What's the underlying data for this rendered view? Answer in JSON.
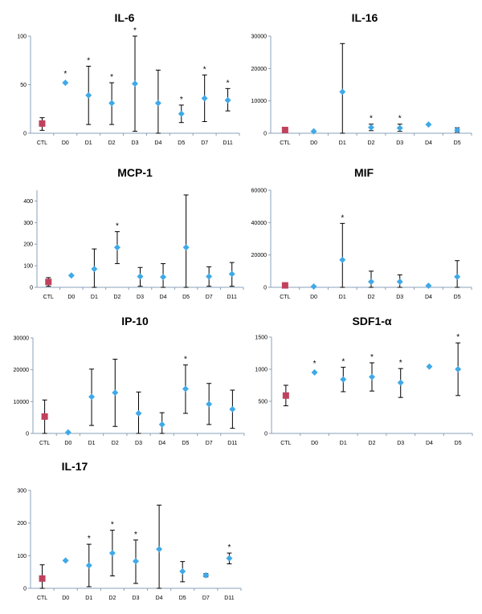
{
  "chart_data": [
    {
      "type": "scatter",
      "title": "IL-6",
      "categories": [
        "CTL",
        "D0",
        "D1",
        "D2",
        "D3",
        "D4",
        "D5",
        "D7",
        "D11"
      ],
      "values": [
        10,
        52,
        39,
        31,
        51,
        31,
        20,
        36,
        34
      ],
      "err_low": [
        3,
        52,
        9,
        9,
        2,
        0,
        11,
        12,
        23
      ],
      "err_high": [
        16,
        52,
        69,
        52,
        100,
        65,
        29,
        60,
        46
      ],
      "significant": [
        false,
        true,
        true,
        true,
        true,
        false,
        true,
        true,
        true
      ],
      "ylim": [
        0,
        100
      ],
      "yticks": [
        0,
        50,
        100
      ],
      "ytick_labels": [
        "0",
        "50",
        "100"
      ]
    },
    {
      "type": "scatter",
      "title": "IL-16",
      "categories": [
        "CTL",
        "D0",
        "D1",
        "D2",
        "D3",
        "D4",
        "D5"
      ],
      "values": [
        1000,
        600,
        12800,
        1800,
        1600,
        2700,
        1000
      ],
      "err_low": [
        1000,
        600,
        0,
        800,
        600,
        2700,
        300
      ],
      "err_high": [
        1000,
        600,
        27700,
        2800,
        2800,
        2700,
        1700
      ],
      "significant": [
        false,
        false,
        false,
        true,
        true,
        false,
        false
      ],
      "ylim": [
        0,
        30000
      ],
      "yticks": [
        0,
        10000,
        20000,
        30000
      ],
      "ytick_labels": [
        "0",
        "10000",
        "20000",
        "30000"
      ]
    },
    {
      "type": "scatter",
      "title": "MCP-1",
      "categories": [
        "CTL",
        "D0",
        "D1",
        "D2",
        "D3",
        "D4",
        "D5",
        "D7",
        "D11"
      ],
      "values": [
        25,
        55,
        85,
        185,
        50,
        48,
        185,
        50,
        62
      ],
      "err_low": [
        5,
        55,
        0,
        110,
        5,
        0,
        0,
        5,
        5
      ],
      "err_high": [
        45,
        55,
        178,
        258,
        92,
        110,
        428,
        95,
        115
      ],
      "significant": [
        false,
        false,
        false,
        true,
        false,
        false,
        false,
        false,
        false
      ],
      "ylim": [
        0,
        450
      ],
      "yticks": [
        0,
        100,
        200,
        300,
        400
      ],
      "ytick_labels": [
        "0",
        "100",
        "200",
        "300",
        "400"
      ]
    },
    {
      "type": "scatter",
      "title": "MIF",
      "categories": [
        "CTL",
        "D0",
        "D1",
        "D2",
        "D3",
        "D4",
        "D5"
      ],
      "values": [
        1200,
        500,
        17000,
        3500,
        3500,
        1000,
        6500
      ],
      "err_low": [
        1200,
        500,
        0,
        0,
        0,
        1000,
        0
      ],
      "err_high": [
        1200,
        500,
        39500,
        10000,
        7700,
        1000,
        16500
      ],
      "significant": [
        false,
        false,
        true,
        false,
        false,
        false,
        false
      ],
      "ylim": [
        0,
        60000
      ],
      "yticks": [
        0,
        20000,
        40000,
        60000
      ],
      "ytick_labels": [
        "0",
        "20000",
        "40000",
        "60000"
      ]
    },
    {
      "type": "scatter",
      "title": "IP-10",
      "categories": [
        "CTL",
        "D0",
        "D1",
        "D2",
        "D3",
        "D4",
        "D5",
        "D7",
        "D11"
      ],
      "values": [
        5300,
        300,
        11500,
        12800,
        6300,
        2800,
        14000,
        9200,
        7600
      ],
      "err_low": [
        0,
        300,
        2500,
        2200,
        0,
        0,
        6300,
        2800,
        1600
      ],
      "err_high": [
        10500,
        300,
        20200,
        23300,
        13000,
        6500,
        21500,
        15700,
        13600
      ],
      "significant": [
        false,
        false,
        false,
        false,
        false,
        false,
        true,
        false,
        false
      ],
      "ylim": [
        0,
        30000
      ],
      "yticks": [
        0,
        10000,
        20000,
        30000
      ],
      "ytick_labels": [
        "0",
        "10000",
        "20000",
        "30000"
      ]
    },
    {
      "type": "scatter",
      "title": "SDF1-α",
      "categories": [
        "CTL",
        "D0",
        "D1",
        "D2",
        "D3",
        "D4",
        "D5"
      ],
      "values": [
        590,
        950,
        840,
        880,
        790,
        1040,
        1000
      ],
      "err_low": [
        430,
        950,
        650,
        660,
        560,
        1040,
        590
      ],
      "err_high": [
        750,
        950,
        1030,
        1100,
        1010,
        1040,
        1410
      ],
      "significant": [
        false,
        true,
        true,
        true,
        true,
        false,
        true
      ],
      "ylim": [
        0,
        1500
      ],
      "yticks": [
        0,
        500,
        1000,
        1500
      ],
      "ytick_labels": [
        "0",
        "500",
        "1000",
        "1500"
      ]
    },
    {
      "type": "scatter",
      "title": "IL-17",
      "categories": [
        "CTL",
        "D0",
        "D1",
        "D2",
        "D3",
        "D4",
        "D5",
        "D7",
        "D11"
      ],
      "values": [
        30,
        85,
        70,
        108,
        83,
        120,
        52,
        40,
        92
      ],
      "err_low": [
        0,
        85,
        5,
        38,
        15,
        0,
        20,
        35,
        75
      ],
      "err_high": [
        72,
        85,
        135,
        178,
        148,
        255,
        82,
        45,
        108
      ],
      "significant": [
        false,
        false,
        true,
        true,
        true,
        false,
        false,
        false,
        true
      ],
      "ylim": [
        0,
        300
      ],
      "yticks": [
        0,
        100,
        200,
        300
      ],
      "ytick_labels": [
        "0",
        "100",
        "200",
        "300"
      ]
    }
  ],
  "significance_symbol": "*",
  "colors": {
    "control": "#c0415d",
    "treatment": "#3fa9e8",
    "axis": "#8aa0b8"
  }
}
